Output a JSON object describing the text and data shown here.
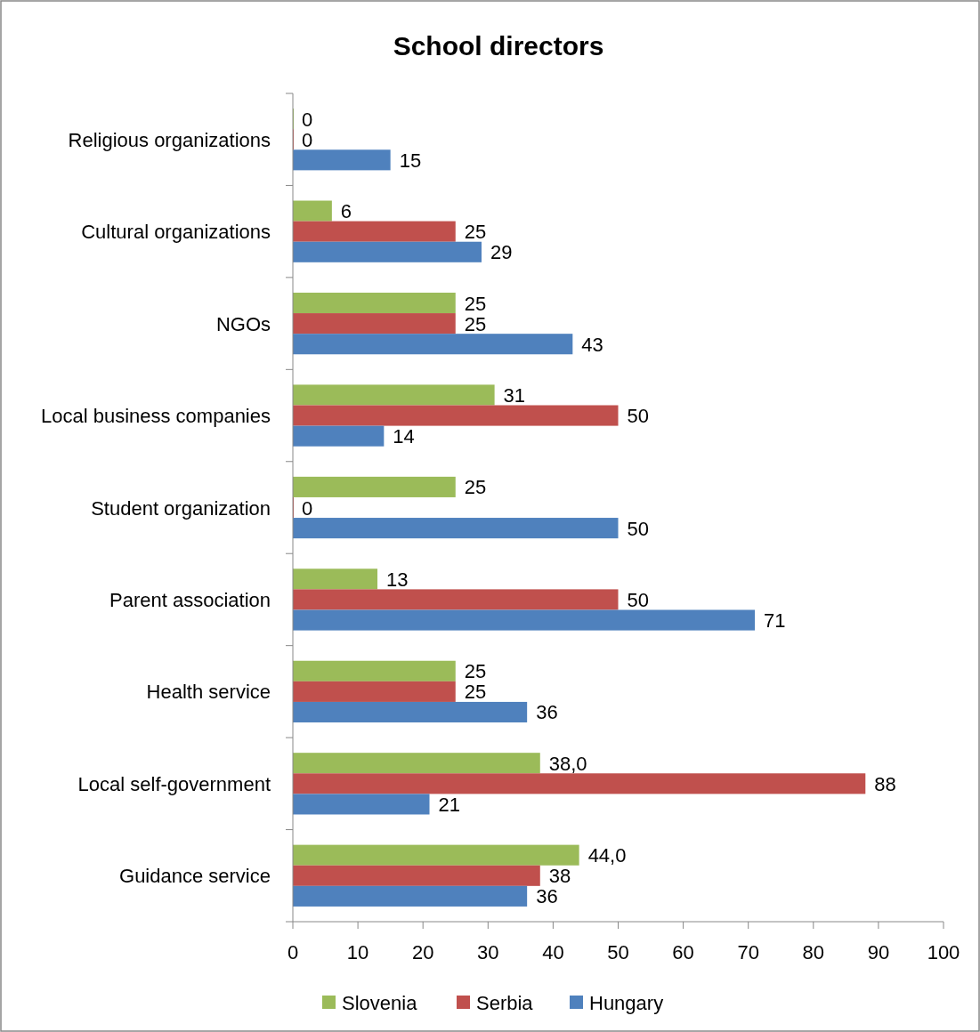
{
  "chart_data": {
    "type": "bar",
    "orientation": "horizontal",
    "title": "School directors",
    "categories": [
      "Religious organizations",
      "Cultural organizations",
      "NGOs",
      "Local business companies",
      "Student organization",
      "Parent association",
      "Health service",
      "Local self-government",
      "Guidance service"
    ],
    "series": [
      {
        "name": "Slovenia",
        "color": "#9bbb59",
        "values": [
          0,
          6,
          25,
          31,
          25,
          13,
          25,
          38,
          44
        ],
        "value_labels": [
          "0",
          "6",
          "25",
          "31",
          "25",
          "13",
          "25",
          "38,0",
          "44,0"
        ]
      },
      {
        "name": "Serbia",
        "color": "#c0504d",
        "values": [
          0,
          25,
          25,
          50,
          0,
          50,
          25,
          88,
          38
        ],
        "value_labels": [
          "0",
          "25",
          "25",
          "50",
          "0",
          "50",
          "25",
          "88",
          "38"
        ]
      },
      {
        "name": "Hungary",
        "color": "#4f81bd",
        "values": [
          15,
          29,
          43,
          14,
          50,
          71,
          36,
          21,
          36
        ],
        "value_labels": [
          "15",
          "29",
          "43",
          "14",
          "50",
          "71",
          "36",
          "21",
          "36"
        ]
      }
    ],
    "xlim": [
      0,
      100
    ],
    "xticks": [
      0,
      10,
      20,
      30,
      40,
      50,
      60,
      70,
      80,
      90,
      100
    ],
    "grid": false,
    "legend": "bottom"
  }
}
